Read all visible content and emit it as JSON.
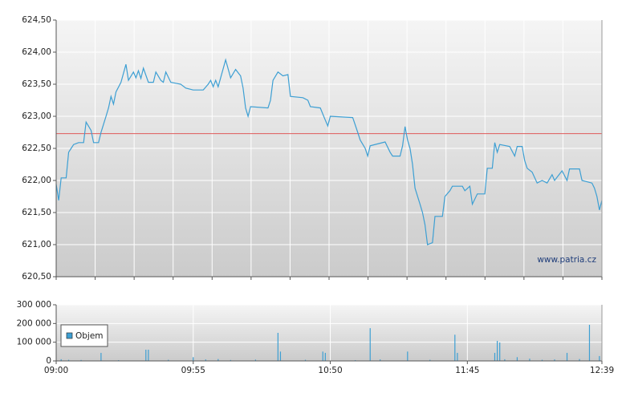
{
  "chart_data": [
    {
      "type": "line",
      "color": "#3d9fd3",
      "grid": true,
      "watermark": "www.patria.cz",
      "reference_line": {
        "value": 622.73,
        "color": "#e05a5a"
      },
      "xlim": [
        "09:00",
        "12:39"
      ],
      "ylim": [
        620.5,
        624.5
      ],
      "yticks": [
        {
          "value": 620.5,
          "label": "620,50"
        },
        {
          "value": 621,
          "label": "621,00"
        },
        {
          "value": 621.5,
          "label": "621,50"
        },
        {
          "value": 622,
          "label": "622,00"
        },
        {
          "value": 622.5,
          "label": "622,50"
        },
        {
          "value": 623,
          "label": "623,00"
        },
        {
          "value": 623.5,
          "label": "623,50"
        },
        {
          "value": 624,
          "label": "624,00"
        },
        {
          "value": 624.5,
          "label": "624,50"
        }
      ],
      "x": [
        "09:00",
        "09:01",
        "09:02",
        "09:04",
        "09:05",
        "09:06",
        "09:07",
        "09:09",
        "09:11",
        "09:12",
        "09:14",
        "09:15",
        "09:17",
        "09:18",
        "09:20",
        "09:21",
        "09:22",
        "09:23",
        "09:24",
        "09:26",
        "09:28",
        "09:29",
        "09:31",
        "09:32",
        "09:33",
        "09:34",
        "09:35",
        "09:37",
        "09:39",
        "09:40",
        "09:42",
        "09:43",
        "09:44",
        "09:46",
        "09:50",
        "09:52",
        "09:55",
        "09:59",
        "10:01",
        "10:02",
        "10:03",
        "10:04",
        "10:05",
        "10:08",
        "10:10",
        "10:12",
        "10:14",
        "10:15",
        "10:16",
        "10:17",
        "10:18",
        "10:25",
        "10:26",
        "10:27",
        "10:29",
        "10:31",
        "10:33",
        "10:34",
        "10:39",
        "10:41",
        "10:42",
        "10:46",
        "10:48",
        "10:49",
        "10:50",
        "10:59",
        "11:01",
        "11:02",
        "11:04",
        "11:05",
        "11:06",
        "11:12",
        "11:14",
        "11:15",
        "11:18",
        "11:19",
        "11:20",
        "11:21",
        "11:22",
        "11:23",
        "11:24",
        "11:26",
        "11:27",
        "11:28",
        "11:29",
        "11:31",
        "11:32",
        "11:35",
        "11:36",
        "11:38",
        "11:39",
        "11:43",
        "11:44",
        "11:46",
        "11:47",
        "11:49",
        "11:52",
        "11:53",
        "11:55",
        "11:56",
        "11:57",
        "11:58",
        "12:02",
        "12:04",
        "12:05",
        "12:07",
        "12:08",
        "12:09",
        "12:11",
        "12:13",
        "12:15",
        "12:17",
        "12:19",
        "12:20",
        "12:23",
        "12:25",
        "12:26",
        "12:30",
        "12:31",
        "12:35",
        "12:36",
        "12:37",
        "12:38",
        "12:39"
      ],
      "values": [
        621.94,
        621.69,
        622.04,
        622.04,
        622.44,
        622.5,
        622.56,
        622.59,
        622.59,
        622.91,
        622.78,
        622.59,
        622.59,
        622.75,
        623.0,
        623.13,
        623.31,
        623.19,
        623.38,
        623.53,
        623.81,
        623.56,
        623.69,
        623.6,
        623.71,
        623.59,
        623.75,
        623.53,
        623.53,
        623.69,
        623.56,
        623.53,
        623.69,
        623.53,
        623.5,
        623.44,
        623.41,
        623.41,
        623.5,
        623.56,
        623.46,
        623.56,
        623.46,
        623.88,
        623.6,
        623.73,
        623.63,
        623.44,
        623.13,
        623.0,
        623.15,
        623.13,
        623.25,
        623.56,
        623.69,
        623.63,
        623.65,
        623.31,
        623.29,
        623.25,
        623.15,
        623.13,
        622.94,
        622.85,
        623.0,
        622.98,
        622.75,
        622.63,
        622.5,
        622.38,
        622.54,
        622.6,
        622.44,
        622.38,
        622.38,
        622.54,
        622.84,
        622.63,
        622.5,
        622.25,
        621.88,
        621.63,
        621.5,
        621.31,
        621.0,
        621.03,
        621.44,
        621.44,
        621.75,
        621.84,
        621.91,
        621.91,
        621.84,
        621.91,
        621.63,
        621.79,
        621.79,
        622.19,
        622.19,
        622.59,
        622.44,
        622.56,
        622.53,
        622.38,
        622.53,
        622.53,
        622.31,
        622.19,
        622.13,
        621.96,
        622.0,
        621.96,
        622.09,
        622.0,
        622.15,
        622.0,
        622.18,
        622.18,
        622.0,
        621.96,
        621.88,
        621.75,
        621.54,
        621.69
      ]
    },
    {
      "type": "bar",
      "grid": true,
      "legend": "lower left",
      "xlim": [
        "09:00",
        "12:39"
      ],
      "xticks": [
        "09:00",
        "09:55",
        "10:50",
        "11:45",
        "12:39"
      ],
      "ylim": [
        0,
        300000
      ],
      "yticks": [
        0,
        {
          "value": 100000,
          "label": "100 000"
        },
        {
          "value": 200000,
          "label": "200 000"
        },
        {
          "value": 300000,
          "label": "300 000"
        }
      ],
      "x": [
        "09:02",
        "09:05",
        "09:10",
        "09:18",
        "09:25",
        "09:36",
        "09:37",
        "09:45",
        "09:55",
        "10:00",
        "10:05",
        "10:10",
        "10:20",
        "10:29",
        "10:30",
        "10:40",
        "10:47",
        "10:48",
        "11:00",
        "11:06",
        "11:10",
        "11:21",
        "11:30",
        "11:40",
        "11:41",
        "11:56",
        "11:57",
        "11:58",
        "12:00",
        "12:05",
        "12:10",
        "12:15",
        "12:20",
        "12:25",
        "12:30",
        "12:34",
        "12:38"
      ],
      "series": [
        {
          "name": "Objem",
          "color": "#3d9fd3",
          "values": [
            9000,
            6000,
            5000,
            43000,
            4000,
            60000,
            60000,
            6000,
            20000,
            8000,
            10000,
            5000,
            7000,
            150000,
            50000,
            6000,
            50000,
            43000,
            4000,
            175000,
            8000,
            50000,
            6000,
            140000,
            43000,
            43000,
            107000,
            99000,
            9000,
            20000,
            12000,
            6000,
            8000,
            43000,
            10000,
            193000,
            26000
          ]
        }
      ]
    }
  ]
}
